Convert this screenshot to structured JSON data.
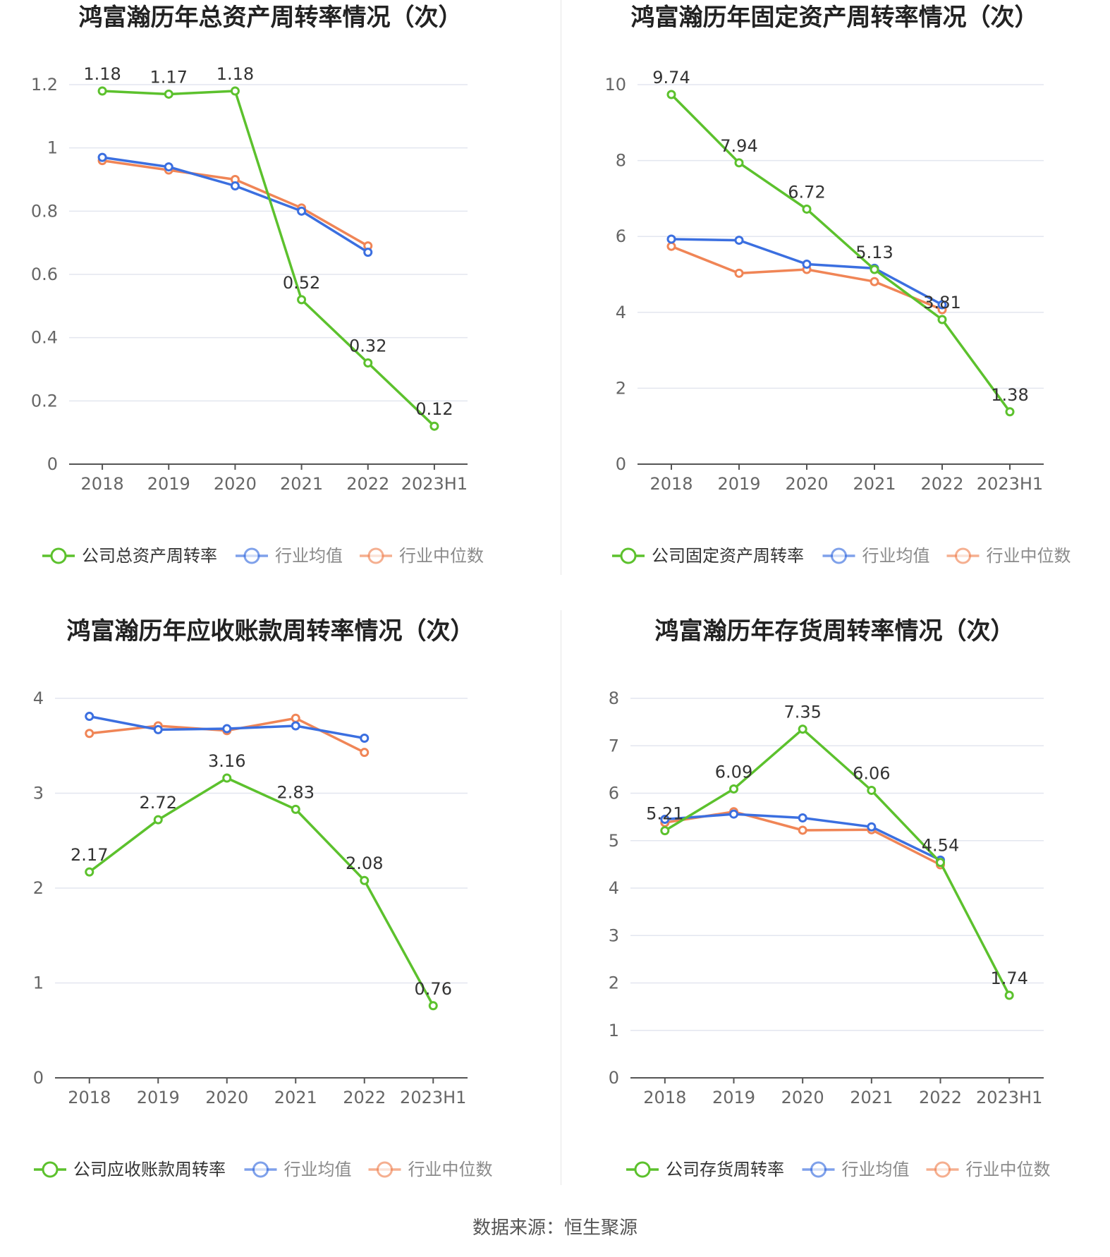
{
  "colors": {
    "company": "#5cc12d",
    "avg": "#3b6fe0",
    "median": "#f08556"
  },
  "source_note": "数据来源：恒生聚源",
  "chart_data": [
    {
      "type": "line",
      "title": "鸿富瀚历年总资产周转率情况（次）",
      "categories": [
        "2018",
        "2019",
        "2020",
        "2021",
        "2022",
        "2023H1"
      ],
      "ylim": [
        0,
        1.2
      ],
      "yticks": [
        0,
        0.2,
        0.4,
        0.6,
        0.8,
        1,
        1.2
      ],
      "ytick_labels": [
        "0",
        "0.2",
        "0.4",
        "0.6",
        "0.8",
        "1",
        "1.2"
      ],
      "series": [
        {
          "name": "公司总资产周转率",
          "key": "company",
          "values": [
            1.18,
            1.17,
            1.18,
            0.52,
            0.32,
            0.12
          ],
          "labels": [
            "1.18",
            "1.17",
            "1.18",
            "0.52",
            "0.32",
            "0.12"
          ]
        },
        {
          "name": "行业均值",
          "key": "avg",
          "values": [
            0.97,
            0.94,
            0.88,
            0.8,
            0.67,
            null
          ]
        },
        {
          "name": "行业中位数",
          "key": "median",
          "values": [
            0.96,
            0.93,
            0.9,
            0.81,
            0.69,
            null
          ]
        }
      ]
    },
    {
      "type": "line",
      "title": "鸿富瀚历年固定资产周转率情况（次）",
      "categories": [
        "2018",
        "2019",
        "2020",
        "2021",
        "2022",
        "2023H1"
      ],
      "ylim": [
        0,
        10
      ],
      "yticks": [
        0,
        2,
        4,
        6,
        8,
        10
      ],
      "ytick_labels": [
        "0",
        "2",
        "4",
        "6",
        "8",
        "10"
      ],
      "series": [
        {
          "name": "公司固定资产周转率",
          "key": "company",
          "values": [
            9.74,
            7.94,
            6.72,
            5.13,
            3.81,
            1.38
          ],
          "labels": [
            "9.74",
            "7.94",
            "6.72",
            "5.13",
            "3.81",
            "1.38"
          ]
        },
        {
          "name": "行业均值",
          "key": "avg",
          "values": [
            5.93,
            5.9,
            5.27,
            5.16,
            4.2,
            null
          ]
        },
        {
          "name": "行业中位数",
          "key": "median",
          "values": [
            5.74,
            5.03,
            5.13,
            4.81,
            4.07,
            null
          ]
        }
      ]
    },
    {
      "type": "line",
      "title": "鸿富瀚历年应收账款周转率情况（次）",
      "categories": [
        "2018",
        "2019",
        "2020",
        "2021",
        "2022",
        "2023H1"
      ],
      "ylim": [
        0,
        4
      ],
      "yticks": [
        0,
        1,
        2,
        3,
        4
      ],
      "ytick_labels": [
        "0",
        "1",
        "2",
        "3",
        "4"
      ],
      "series": [
        {
          "name": "公司应收账款周转率",
          "key": "company",
          "values": [
            2.17,
            2.72,
            3.16,
            2.83,
            2.08,
            0.76
          ],
          "labels": [
            "2.17",
            "2.72",
            "3.16",
            "2.83",
            "2.08",
            "0.76"
          ]
        },
        {
          "name": "行业均值",
          "key": "avg",
          "values": [
            3.81,
            3.67,
            3.68,
            3.71,
            3.58,
            null
          ]
        },
        {
          "name": "行业中位数",
          "key": "median",
          "values": [
            3.63,
            3.71,
            3.66,
            3.79,
            3.43,
            null
          ]
        }
      ]
    },
    {
      "type": "line",
      "title": "鸿富瀚历年存货周转率情况（次）",
      "categories": [
        "2018",
        "2019",
        "2020",
        "2021",
        "2022",
        "2023H1"
      ],
      "ylim": [
        0,
        8
      ],
      "yticks": [
        0,
        1,
        2,
        3,
        4,
        5,
        6,
        7,
        8
      ],
      "ytick_labels": [
        "0",
        "1",
        "2",
        "3",
        "4",
        "5",
        "6",
        "7",
        "8"
      ],
      "series": [
        {
          "name": "公司存货周转率",
          "key": "company",
          "values": [
            5.21,
            6.09,
            7.35,
            6.06,
            4.54,
            1.74
          ],
          "labels": [
            "5.21",
            "6.09",
            "7.35",
            "6.06",
            "4.54",
            "1.74"
          ]
        },
        {
          "name": "行业均值",
          "key": "avg",
          "values": [
            5.45,
            5.56,
            5.48,
            5.29,
            4.59,
            null
          ]
        },
        {
          "name": "行业中位数",
          "key": "median",
          "values": [
            5.38,
            5.61,
            5.22,
            5.23,
            4.49,
            null
          ]
        }
      ]
    }
  ]
}
